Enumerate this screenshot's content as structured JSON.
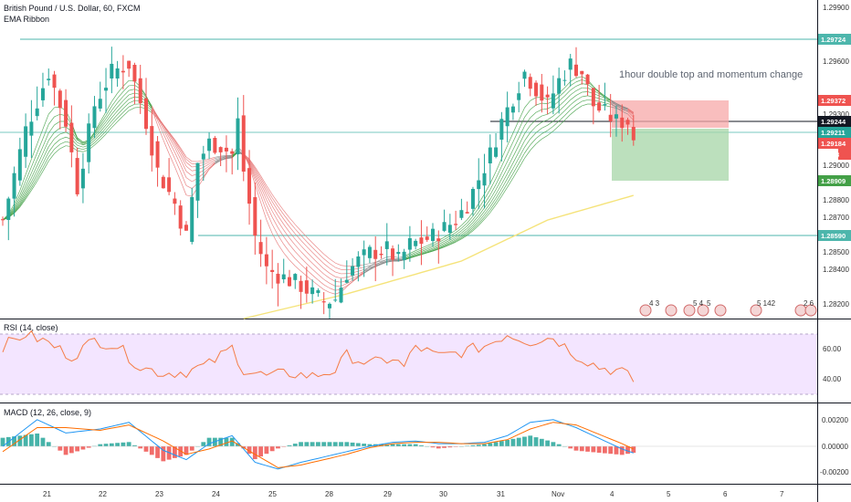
{
  "header": {
    "symbol": "British Pound / U.S. Dollar, 60, FXCM",
    "indicator": "EMA Ribbon"
  },
  "annotation": "1hour double top and momentum change",
  "colors": {
    "resistance_line": "#4db6ac",
    "support_line": "#4db6ac",
    "entry_line": "#131722",
    "stop_zone": "#f7a8a8",
    "target_zone": "#a5d6a7",
    "up_candle": "#26a69a",
    "down_candle": "#ef5350",
    "ribbon_up": "#43a047",
    "ribbon_down": "#e57373",
    "ribbon_neutral": "#8a8a8a",
    "ma200": "#f5e37a",
    "rsi_line": "#f57c46",
    "rsi_band": "#f3e5ff",
    "macd_line": "#2196f3",
    "signal_line": "#ff6d00"
  },
  "price_axis": {
    "ticks": [
      "1.29900",
      "1.29600",
      "1.29300",
      "1.29000",
      "1.28700",
      "1.28400",
      "1.28200"
    ],
    "tags": [
      {
        "label": "1.29724",
        "color": "#4db6ac",
        "role": "resistance"
      },
      {
        "label": "1.29372",
        "color": "#ef5350",
        "role": "stop"
      },
      {
        "label": "1.29244",
        "color": "#131722",
        "role": "entry"
      },
      {
        "label": "1.29211",
        "color": "#26a69a",
        "role": "last"
      },
      {
        "label": "1.29184",
        "color": "#ef5350",
        "role": "price"
      },
      {
        "label": "38:18",
        "color": "#ef5350",
        "role": "countdown"
      },
      {
        "label": "1.28909",
        "color": "#43a047",
        "role": "target"
      },
      {
        "label": "1.28590",
        "color": "#4db6ac",
        "role": "support"
      }
    ],
    "extra_ticks": [
      "1.28800",
      "1.28500"
    ]
  },
  "rsi": {
    "label": "RSI (14, close)",
    "ticks": [
      "60.00",
      "40.00"
    ]
  },
  "macd": {
    "label": "MACD (12, 26, close, 9)",
    "ticks": [
      "0.00200",
      "0.00000",
      "-0.00200"
    ]
  },
  "time_axis": {
    "labels": [
      "21",
      "22",
      "23",
      "24",
      "25",
      "28",
      "29",
      "30",
      "31",
      "Nov",
      "4",
      "5",
      "6",
      "7"
    ]
  },
  "event_markers": [
    "4 3",
    "",
    "5 4",
    "5",
    "5 142",
    "2 6"
  ],
  "chart_data": {
    "type": "candlestick",
    "title": "British Pound / U.S. Dollar, 60, FXCM",
    "price_range": [
      1.281,
      1.3004
    ],
    "levels": {
      "resistance": 1.29724,
      "stop": 1.29372,
      "entry": 1.29244,
      "last": 1.29211,
      "target": 1.28909,
      "support": 1.2859
    },
    "price_path": [
      [
        0,
        1.287
      ],
      [
        4,
        1.2925
      ],
      [
        8,
        1.296
      ],
      [
        11,
        1.293
      ],
      [
        13,
        1.289
      ],
      [
        16,
        1.294
      ],
      [
        19,
        1.296
      ],
      [
        22,
        1.2965
      ],
      [
        25,
        1.293
      ],
      [
        27,
        1.29
      ],
      [
        30,
        1.288
      ],
      [
        32,
        1.286
      ],
      [
        34,
        1.2905
      ],
      [
        36,
        1.2917
      ],
      [
        38,
        1.2915
      ],
      [
        40,
        1.291
      ],
      [
        41,
        1.293
      ],
      [
        42,
        1.29
      ],
      [
        44,
        1.286
      ],
      [
        46,
        1.284
      ],
      [
        49,
        1.2835
      ],
      [
        52,
        1.283
      ],
      [
        54,
        1.2825
      ],
      [
        56,
        1.282
      ],
      [
        58,
        1.2822
      ],
      [
        60,
        1.2838
      ],
      [
        62,
        1.2845
      ],
      [
        64,
        1.285
      ],
      [
        67,
        1.2852
      ],
      [
        69,
        1.2845
      ],
      [
        71,
        1.2855
      ],
      [
        73,
        1.2857
      ],
      [
        75,
        1.286
      ],
      [
        77,
        1.2865
      ],
      [
        79,
        1.287
      ],
      [
        81,
        1.288
      ],
      [
        83,
        1.2895
      ],
      [
        85,
        1.291
      ],
      [
        87,
        1.293
      ],
      [
        89,
        1.2945
      ],
      [
        91,
        1.296
      ],
      [
        93,
        1.295
      ],
      [
        95,
        1.294
      ],
      [
        97,
        1.2955
      ],
      [
        99,
        1.2965
      ],
      [
        101,
        1.296
      ],
      [
        103,
        1.294
      ],
      [
        105,
        1.2935
      ],
      [
        107,
        1.293
      ],
      [
        109,
        1.293
      ],
      [
        110,
        1.292
      ]
    ],
    "ma200": [
      [
        42,
        1.281
      ],
      [
        60,
        1.2825
      ],
      [
        80,
        1.2845
      ],
      [
        95,
        1.287
      ],
      [
        110,
        1.2885
      ]
    ],
    "rsi_range": [
      30,
      70
    ],
    "rsi_path": [
      [
        0,
        62
      ],
      [
        4,
        70
      ],
      [
        8,
        64
      ],
      [
        12,
        55
      ],
      [
        16,
        66
      ],
      [
        20,
        62
      ],
      [
        24,
        48
      ],
      [
        28,
        44
      ],
      [
        32,
        45
      ],
      [
        36,
        50
      ],
      [
        40,
        61
      ],
      [
        42,
        46
      ],
      [
        46,
        42
      ],
      [
        50,
        44
      ],
      [
        54,
        42
      ],
      [
        58,
        46
      ],
      [
        60,
        56
      ],
      [
        64,
        50
      ],
      [
        68,
        54
      ],
      [
        70,
        48
      ],
      [
        72,
        62
      ],
      [
        76,
        55
      ],
      [
        80,
        58
      ],
      [
        84,
        62
      ],
      [
        88,
        70
      ],
      [
        92,
        65
      ],
      [
        96,
        68
      ],
      [
        100,
        56
      ],
      [
        104,
        48
      ],
      [
        108,
        45
      ],
      [
        110,
        39
      ]
    ],
    "macd_range": [
      -0.0026,
      0.0026
    ],
    "macd_path": [
      [
        0,
        0.0
      ],
      [
        6,
        0.002
      ],
      [
        11,
        0.001
      ],
      [
        17,
        0.0013
      ],
      [
        22,
        0.0018
      ],
      [
        28,
        -0.0003
      ],
      [
        32,
        -0.001
      ],
      [
        36,
        0.0002
      ],
      [
        40,
        0.0008
      ],
      [
        44,
        -0.0012
      ],
      [
        48,
        -0.0017
      ],
      [
        52,
        -0.0012
      ],
      [
        56,
        -0.0008
      ],
      [
        60,
        -0.0004
      ],
      [
        64,
        0.0
      ],
      [
        68,
        0.0003
      ],
      [
        72,
        0.0004
      ],
      [
        76,
        0.0002
      ],
      [
        80,
        0.0002
      ],
      [
        84,
        0.0003
      ],
      [
        88,
        0.0008
      ],
      [
        92,
        0.0018
      ],
      [
        96,
        0.002
      ],
      [
        100,
        0.0014
      ],
      [
        104,
        0.0006
      ],
      [
        108,
        -0.0002
      ],
      [
        110,
        -0.0005
      ]
    ],
    "signal_path": [
      [
        0,
        -0.0004
      ],
      [
        6,
        0.0014
      ],
      [
        11,
        0.0014
      ],
      [
        17,
        0.0012
      ],
      [
        22,
        0.0016
      ],
      [
        28,
        0.0004
      ],
      [
        32,
        -0.0006
      ],
      [
        36,
        -0.0002
      ],
      [
        40,
        0.0004
      ],
      [
        44,
        -0.0006
      ],
      [
        48,
        -0.0016
      ],
      [
        52,
        -0.0014
      ],
      [
        56,
        -0.001
      ],
      [
        60,
        -0.0006
      ],
      [
        64,
        -0.0001
      ],
      [
        68,
        0.0002
      ],
      [
        72,
        0.0003
      ],
      [
        76,
        0.0003
      ],
      [
        80,
        0.0002
      ],
      [
        84,
        0.0002
      ],
      [
        88,
        0.0005
      ],
      [
        92,
        0.0013
      ],
      [
        96,
        0.0018
      ],
      [
        100,
        0.0016
      ],
      [
        104,
        0.0009
      ],
      [
        108,
        0.0002
      ],
      [
        110,
        -0.0002
      ]
    ]
  }
}
